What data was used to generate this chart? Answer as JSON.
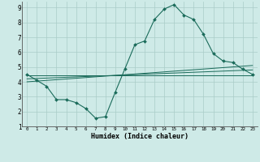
{
  "xlabel": "Humidex (Indice chaleur)",
  "bg_color": "#ceeae7",
  "line_color": "#1a6b5a",
  "grid_color": "#aaccc8",
  "xlim": [
    -0.5,
    23.5
  ],
  "ylim": [
    1,
    9.4
  ],
  "xticks": [
    0,
    1,
    2,
    3,
    4,
    5,
    6,
    7,
    8,
    9,
    10,
    11,
    12,
    13,
    14,
    15,
    16,
    17,
    18,
    19,
    20,
    21,
    22,
    23
  ],
  "yticks": [
    1,
    2,
    3,
    4,
    5,
    6,
    7,
    8,
    9
  ],
  "main_line": {
    "x": [
      0,
      1,
      2,
      3,
      4,
      5,
      6,
      7,
      8,
      9,
      10,
      11,
      12,
      13,
      14,
      15,
      16,
      17,
      18,
      19,
      20,
      21,
      22,
      23
    ],
    "y": [
      4.5,
      4.1,
      3.7,
      2.8,
      2.8,
      2.6,
      2.2,
      1.55,
      1.65,
      3.3,
      4.9,
      6.5,
      6.75,
      8.2,
      8.9,
      9.2,
      8.5,
      8.2,
      7.2,
      5.9,
      5.4,
      5.3,
      4.85,
      4.5
    ]
  },
  "flat_lines": [
    {
      "x": [
        0,
        23
      ],
      "y": [
        4.45,
        4.45
      ]
    },
    {
      "x": [
        0,
        23
      ],
      "y": [
        4.2,
        4.8
      ]
    },
    {
      "x": [
        0,
        23
      ],
      "y": [
        4.0,
        5.1
      ]
    }
  ]
}
